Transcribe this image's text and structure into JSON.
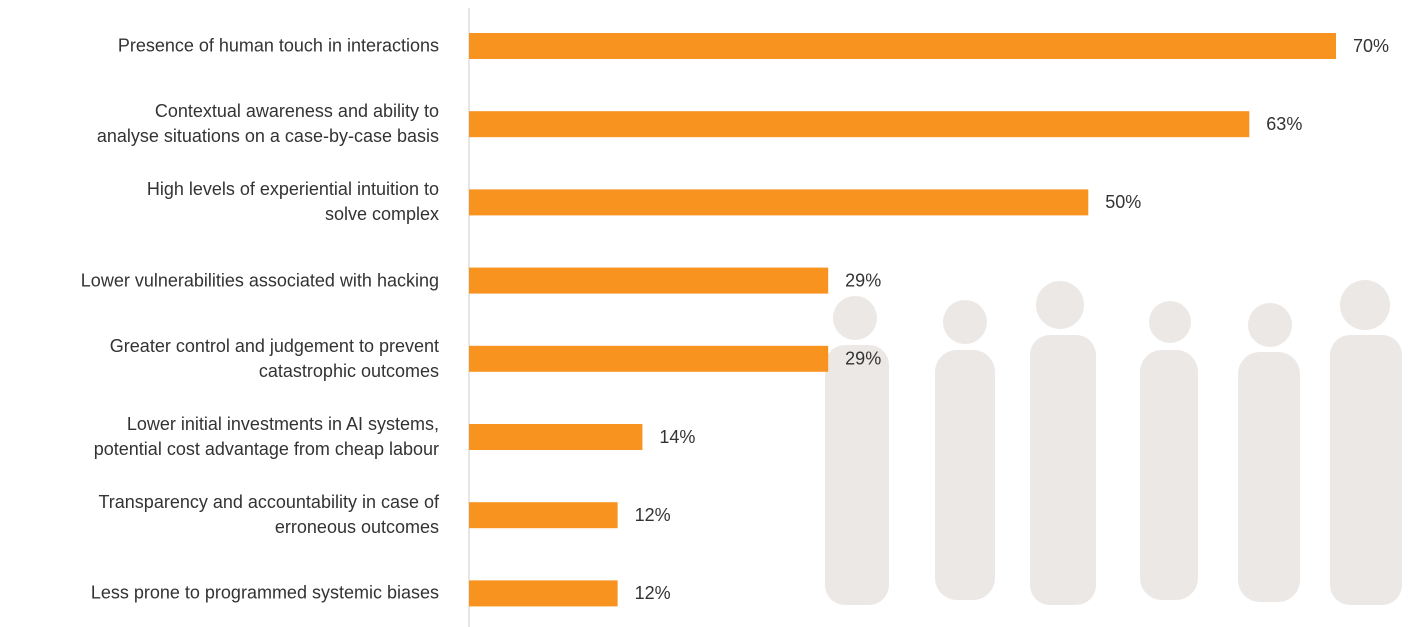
{
  "chart_data": {
    "type": "bar",
    "orientation": "horizontal",
    "categories": [
      "Presence of human touch in interactions",
      "Contextual awareness and ability to\nanalyse situations on a case-by-case basis",
      "High levels of experiential intuition to\nsolve complex",
      "Lower vulnerabilities associated with hacking",
      "Greater control and judgement to prevent\ncatastrophic outcomes",
      "Lower initial investments in AI systems,\npotential cost advantage from cheap labour",
      "Transparency and accountability in case of\nerroneous outcomes",
      "Less prone to programmed systemic biases"
    ],
    "values": [
      70,
      63,
      50,
      29,
      29,
      14,
      12,
      12
    ],
    "value_labels": [
      "70%",
      "63%",
      "50%",
      "29%",
      "29%",
      "14%",
      "12%",
      "12%"
    ],
    "color": "#f7931e"
  }
}
